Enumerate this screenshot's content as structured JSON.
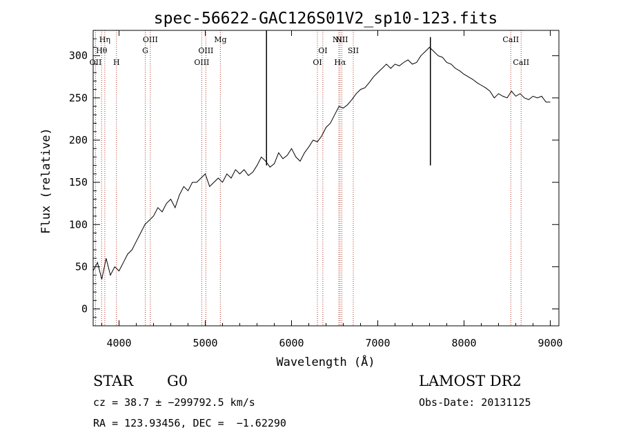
{
  "chart_data": {
    "type": "line",
    "title": "spec-56622-GAC126S01V2_sp10-123.fits",
    "xlabel": "Wavelength (Å)",
    "ylabel": "Flux (relative)",
    "xlim": [
      3700,
      9100
    ],
    "ylim": [
      -20,
      330
    ],
    "x_ticks": [
      4000,
      5000,
      6000,
      7000,
      8000,
      9000
    ],
    "y_ticks": [
      0,
      50,
      100,
      150,
      200,
      250,
      300
    ],
    "grid": false,
    "line_color": "#000000",
    "line_marker_color": "#b03020",
    "series": [
      {
        "x": [
          3700,
          3750,
          3800,
          3850,
          3900,
          3950,
          4000,
          4050,
          4100,
          4150,
          4200,
          4250,
          4300,
          4350,
          4400,
          4450,
          4500,
          4550,
          4600,
          4650,
          4700,
          4750,
          4800,
          4850,
          4900,
          4950,
          5000,
          5050,
          5100,
          5150,
          5200,
          5250,
          5300,
          5350,
          5400,
          5450,
          5500,
          5550,
          5600,
          5650,
          5700,
          5750,
          5800,
          5850,
          5900,
          5950,
          6000,
          6050,
          6100,
          6150,
          6200,
          6250,
          6300,
          6350,
          6400,
          6450,
          6500,
          6550,
          6600,
          6650,
          6700,
          6750,
          6800,
          6850,
          6900,
          6950,
          7000,
          7050,
          7100,
          7150,
          7200,
          7250,
          7300,
          7350,
          7400,
          7450,
          7500,
          7550,
          7600,
          7650,
          7700,
          7750,
          7800,
          7850,
          7900,
          7950,
          8000,
          8050,
          8100,
          8150,
          8200,
          8250,
          8300,
          8350,
          8400,
          8450,
          8500,
          8550,
          8600,
          8650,
          8700,
          8750,
          8800,
          8850,
          8900,
          8950,
          9000
        ],
        "values": [
          45,
          55,
          35,
          60,
          40,
          50,
          45,
          55,
          65,
          70,
          80,
          90,
          100,
          105,
          110,
          120,
          115,
          125,
          130,
          120,
          135,
          145,
          140,
          150,
          150,
          155,
          160,
          145,
          150,
          155,
          150,
          160,
          155,
          165,
          160,
          165,
          158,
          162,
          170,
          180,
          175,
          168,
          172,
          185,
          178,
          182,
          190,
          180,
          175,
          185,
          192,
          200,
          198,
          205,
          215,
          220,
          230,
          240,
          238,
          242,
          248,
          255,
          260,
          262,
          268,
          275,
          280,
          285,
          290,
          285,
          290,
          288,
          292,
          295,
          290,
          292,
          300,
          305,
          310,
          305,
          300,
          298,
          292,
          290,
          285,
          282,
          278,
          275,
          272,
          268,
          265,
          262,
          258,
          250,
          255,
          252,
          250,
          258,
          252,
          255,
          250,
          248,
          252,
          250,
          252,
          245,
          245
        ]
      }
    ],
    "spikes": [
      {
        "x": 5710,
        "y": 330
      },
      {
        "x": 7610,
        "y": 322
      }
    ],
    "lines": [
      {
        "x": 3728,
        "label": "OII",
        "row": 3
      },
      {
        "x": 3798,
        "label": "Hθ",
        "row": 2
      },
      {
        "x": 3835,
        "label": "Hη",
        "row": 1
      },
      {
        "x": 3970,
        "label": "H",
        "row": 3
      },
      {
        "x": 4304,
        "label": "G",
        "row": 2
      },
      {
        "x": 4363,
        "label": "OIII",
        "row": 1
      },
      {
        "x": 4959,
        "label": "OIII",
        "row": 3
      },
      {
        "x": 5007,
        "label": "OIII",
        "row": 2
      },
      {
        "x": 5175,
        "label": "Mg",
        "row": 1
      },
      {
        "x": 6300,
        "label": "OI",
        "row": 3
      },
      {
        "x": 6363,
        "label": "OI",
        "row": 2
      },
      {
        "x": 6548,
        "label": "NII",
        "row": 1
      },
      {
        "x": 6563,
        "label": "Hα",
        "row": 3
      },
      {
        "x": 6583,
        "label": "NII",
        "row": 1
      },
      {
        "x": 6716,
        "label": "SII",
        "row": 2
      },
      {
        "x": 8542,
        "label": "CaII",
        "row": 1
      },
      {
        "x": 8662,
        "label": "CaII",
        "row": 3
      }
    ]
  },
  "info": {
    "object_class": "STAR",
    "subclass": "G0",
    "survey": "LAMOST DR2",
    "redshift_line": "cz = 38.7 ± −299792.5 km/s",
    "obs_date": "Obs-Date: 20131125",
    "coords": "RA = 123.93456, DEC =  −1.62290"
  }
}
